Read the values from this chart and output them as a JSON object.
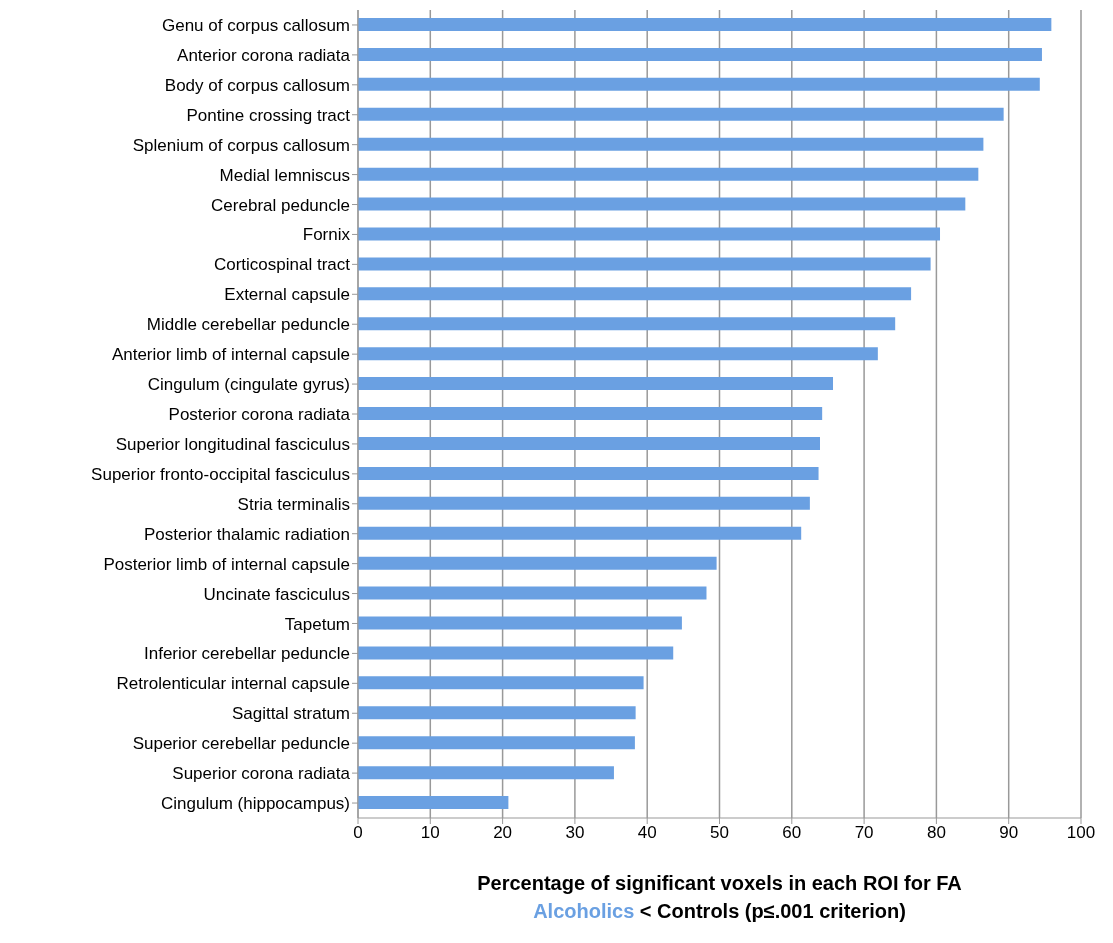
{
  "chart_data": {
    "type": "bar",
    "orientation": "horizontal",
    "categories": [
      "Genu of corpus callosum",
      "Anterior corona radiata",
      "Body of corpus callosum",
      "Pontine crossing tract",
      "Splenium of corpus callosum",
      "Medial lemniscus",
      "Cerebral peduncle",
      "Fornix",
      "Corticospinal tract",
      "External capsule",
      "Middle cerebellar peduncle",
      "Anterior limb of internal capsule",
      "Cingulum (cingulate gyrus)",
      "Posterior corona radiata",
      "Superior longitudinal fasciculus",
      "Superior fronto-occipital fasciculus",
      "Stria terminalis",
      "Posterior thalamic radiation",
      "Posterior limb of internal capsule",
      "Uncinate fasciculus",
      "Tapetum",
      "Inferior cerebellar peduncle",
      "Retrolenticular internal capsule",
      "Sagittal stratum",
      "Superior cerebellar peduncle",
      "Superior corona radiata",
      "Cingulum (hippocampus)"
    ],
    "values": [
      95.9,
      94.6,
      94.3,
      89.3,
      86.5,
      85.8,
      84.0,
      80.5,
      79.2,
      76.5,
      74.3,
      71.9,
      65.7,
      64.2,
      63.9,
      63.7,
      62.5,
      61.3,
      49.6,
      48.2,
      44.8,
      43.6,
      39.5,
      38.4,
      38.3,
      35.4,
      20.8
    ],
    "color": "#6aa0e2",
    "xlabel": "Percentage of significant voxels in each ROI for FA\nAlcoholics < Controls (p≤.001 criterion)",
    "xlim": [
      0,
      100
    ],
    "xticks": [
      0,
      10,
      20,
      30,
      40,
      50,
      60,
      70,
      80,
      90,
      100
    ],
    "grid": "x"
  }
}
